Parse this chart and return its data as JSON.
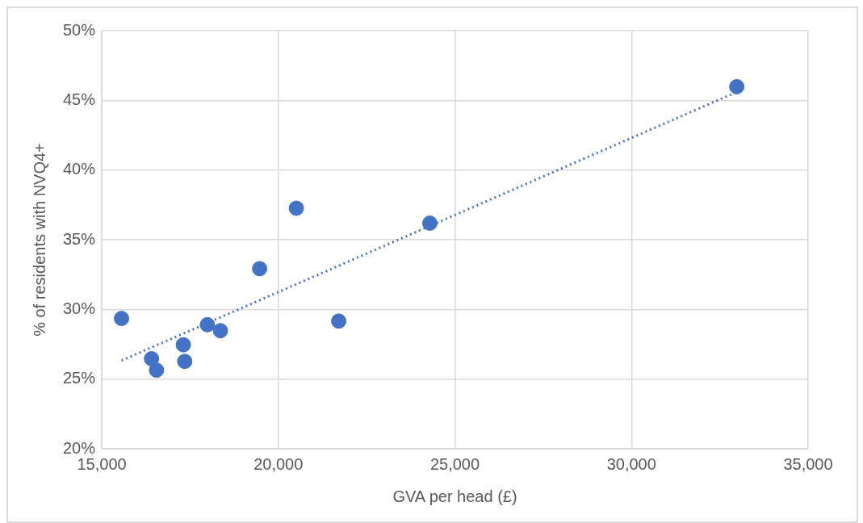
{
  "chart_data": {
    "type": "scatter",
    "xlabel": "GVA per head (£)",
    "ylabel": "% of residents with NVQ4+",
    "xlim": [
      15000,
      35000
    ],
    "xticks": [
      {
        "value": 15000,
        "label": "15,000"
      },
      {
        "value": 20000,
        "label": "20,000"
      },
      {
        "value": 25000,
        "label": "25,000"
      },
      {
        "value": 30000,
        "label": "30,000"
      },
      {
        "value": 35000,
        "label": "35,000"
      }
    ],
    "ylim": [
      20,
      50
    ],
    "yticks": [
      {
        "value": 20,
        "label": "20%"
      },
      {
        "value": 25,
        "label": "25%"
      },
      {
        "value": 30,
        "label": "30%"
      },
      {
        "value": 35,
        "label": "35%"
      },
      {
        "value": 40,
        "label": "40%"
      },
      {
        "value": 45,
        "label": "45%"
      },
      {
        "value": 50,
        "label": "50%"
      }
    ],
    "grid": true,
    "legend": false,
    "marker": "circle",
    "series": [
      {
        "color": "#4472c4",
        "x": [
          15560,
          16410,
          16550,
          17310,
          17350,
          17990,
          18360,
          19470,
          20510,
          21710,
          24290,
          32980
        ],
        "values": [
          29.35,
          26.46,
          25.64,
          27.46,
          26.27,
          28.9,
          28.47,
          32.92,
          37.26,
          29.16,
          36.19,
          45.98
        ]
      },
      {
        "type": "line",
        "color": "#4472c4",
        "line_style": "dotted",
        "marker": "none",
        "x": [
          15560,
          32980
        ],
        "values": [
          26.33,
          45.6
        ]
      }
    ]
  }
}
